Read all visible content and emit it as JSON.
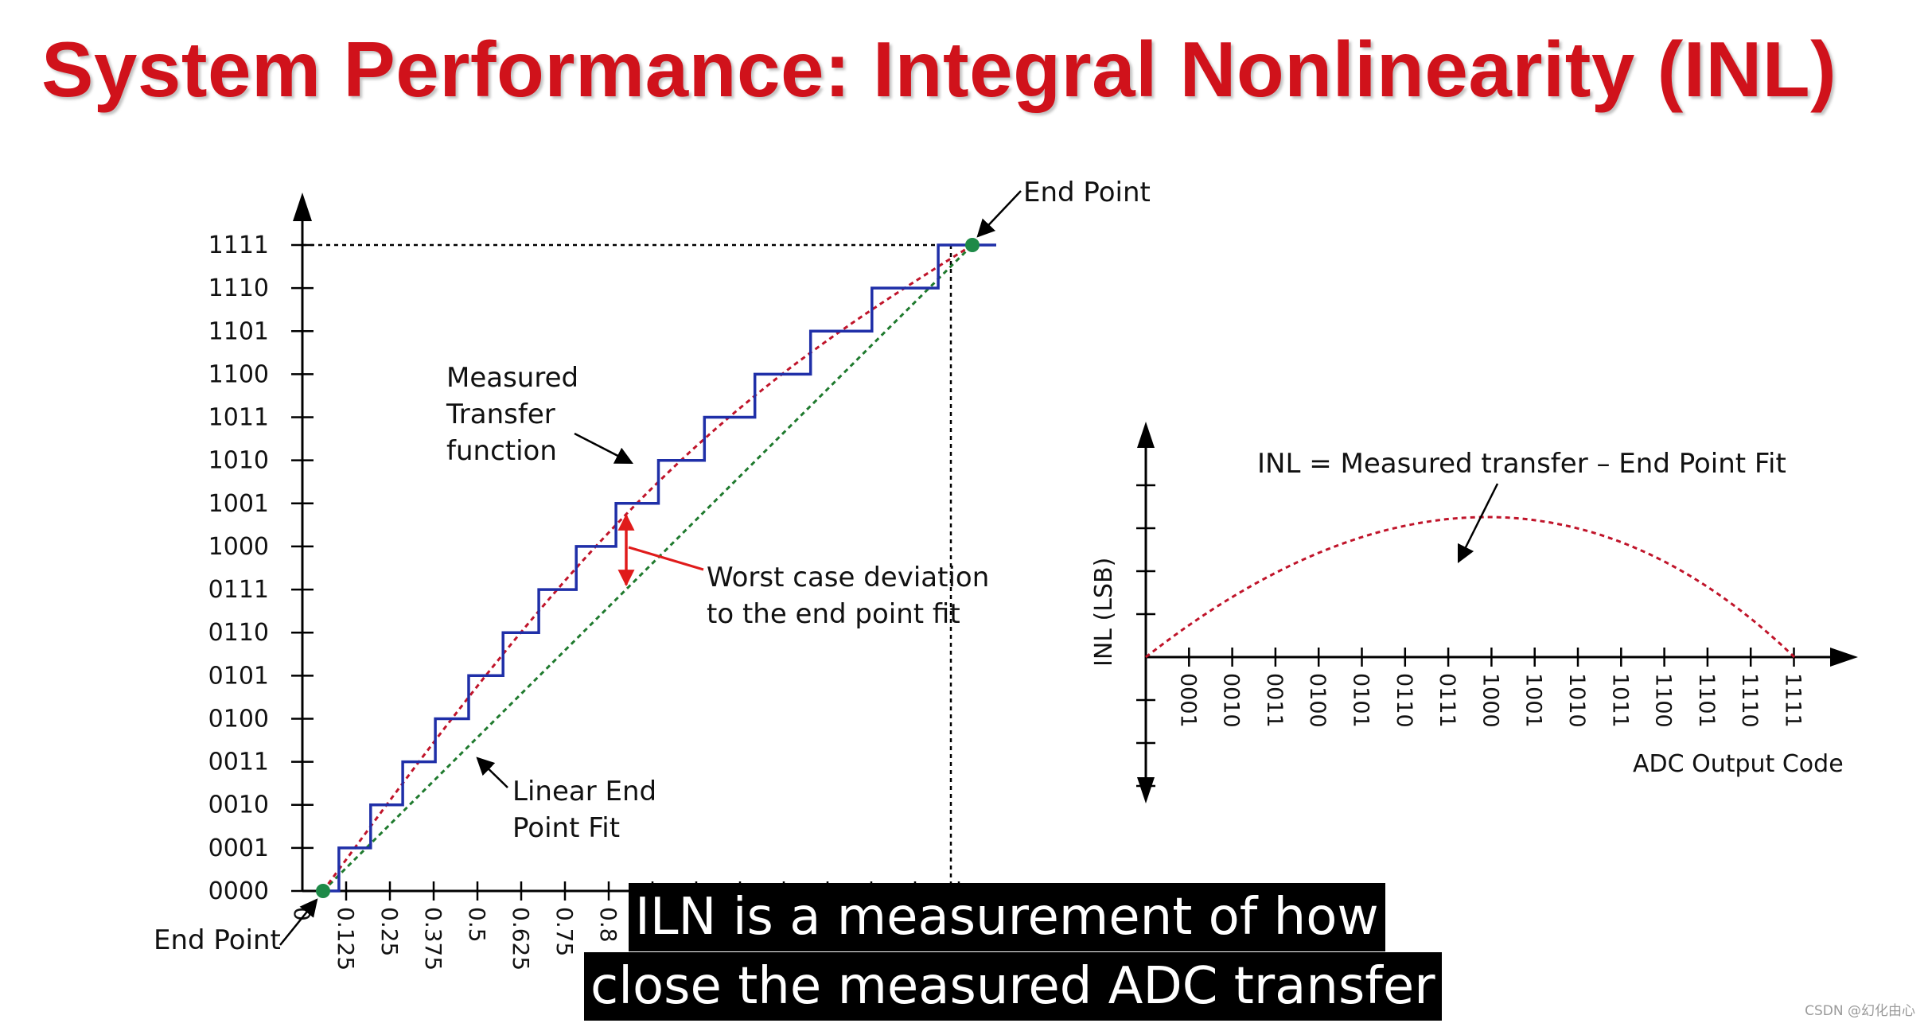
{
  "title": "System Performance: Integral Nonlinearity (INL)",
  "left_diagram": {
    "y_codes": [
      "0000",
      "0001",
      "0010",
      "0011",
      "0100",
      "0101",
      "0110",
      "0111",
      "1000",
      "1001",
      "1010",
      "1011",
      "1100",
      "1101",
      "1110",
      "1111"
    ],
    "x_ticks": [
      "0",
      "0.125",
      "0.25",
      "0.375",
      "0.5",
      "0.625",
      "0.75",
      "0.8"
    ],
    "labels": {
      "end_point_top": "End Point",
      "end_point_bottom": "End Point",
      "measured": [
        "Measured",
        "Transfer",
        "function"
      ],
      "worst_case": [
        "Worst case deviation",
        "to the end point fit"
      ],
      "linear_fit": [
        "Linear End",
        "Point Fit"
      ]
    }
  },
  "right_diagram": {
    "x_codes": [
      "0001",
      "0010",
      "0011",
      "0100",
      "0101",
      "0110",
      "0111",
      "1000",
      "1001",
      "1010",
      "1011",
      "1100",
      "1101",
      "1110",
      "1111"
    ],
    "y_label": "INL (LSB)",
    "x_label": "ADC Output Code",
    "inl_label": "INL = Measured transfer – End Point Fit"
  },
  "colors": {
    "title": "#d0121b",
    "staircase": "#1f2fa8",
    "curve": "#c0142a",
    "linear_fit": "#1f7a2e",
    "end_point": "#1e8a48",
    "arrow": "#e01b1b"
  },
  "caption": {
    "line1": "ILN is a measurement of how",
    "line2": "close the measured ADC transfer"
  },
  "watermark": "CSDN @幻化由心"
}
